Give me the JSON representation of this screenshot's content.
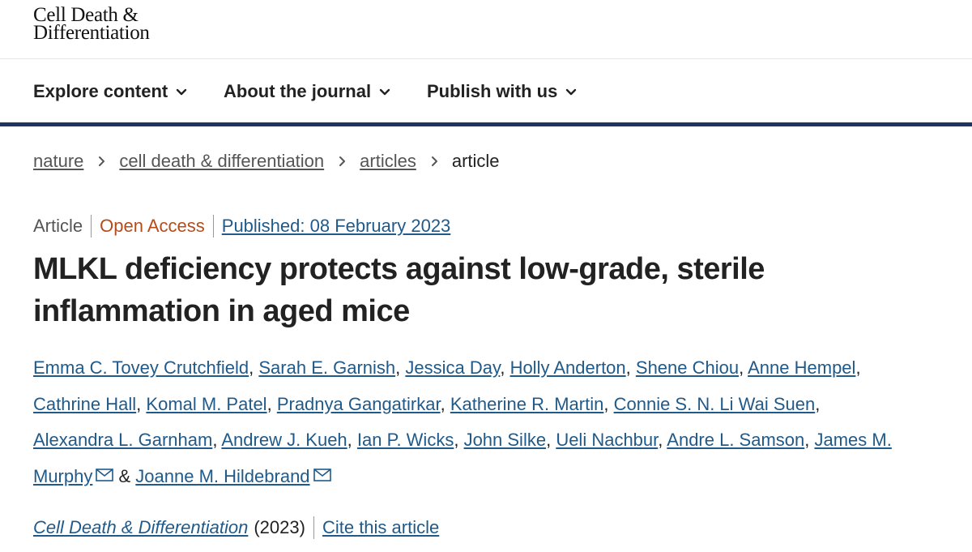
{
  "header": {
    "logo_line1": "Cell Death &",
    "logo_line2": "Differentiation"
  },
  "nav": {
    "items": [
      {
        "label": "Explore content"
      },
      {
        "label": "About the journal"
      },
      {
        "label": "Publish with us"
      }
    ]
  },
  "breadcrumb": {
    "items": [
      "nature",
      "cell death & differentiation",
      "articles"
    ],
    "current": "article"
  },
  "article": {
    "type": "Article",
    "access": "Open Access",
    "published": "Published: 08 February 2023",
    "title": "MLKL deficiency protects against low-grade, sterile inflammation in aged mice",
    "authors": [
      "Emma C. Tovey Crutchfield",
      "Sarah E. Garnish",
      "Jessica Day",
      "Holly Anderton",
      "Shene Chiou",
      "Anne Hempel",
      "Cathrine Hall",
      "Komal M. Patel",
      "Pradnya Gangatirkar",
      "Katherine R. Martin",
      "Connie S. N. Li Wai Suen",
      "Alexandra L. Garnham",
      "Andrew J. Kueh",
      "Ian P. Wicks",
      "John Silke",
      "Ueli Nachbur",
      "Andre L. Samson",
      "James M. Murphy",
      "Joanne M. Hildebrand"
    ],
    "author_and": "&",
    "journal": "Cell Death & Differentiation",
    "year": "(2023)",
    "cite_label": "Cite this article"
  },
  "colors": {
    "nav_border": "#1f3462",
    "link": "#1f5a8a",
    "open_access": "#b34d1a"
  },
  "icons": [
    "chevron-down-icon",
    "chevron-right-icon",
    "envelope-icon"
  ]
}
